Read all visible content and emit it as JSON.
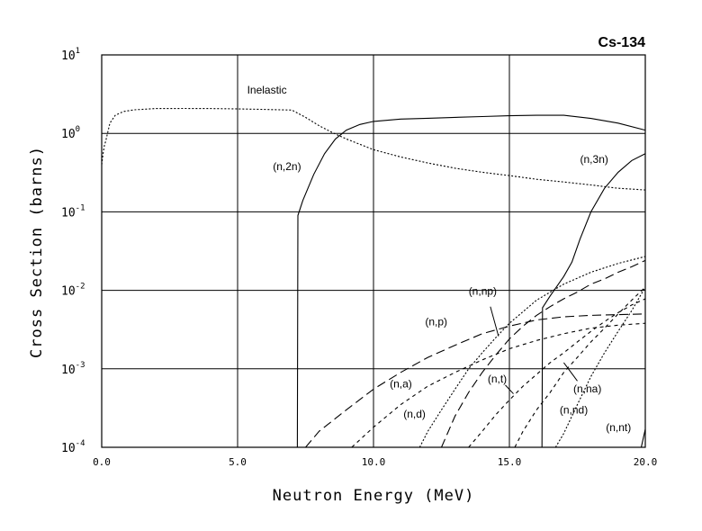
{
  "chart_data": {
    "type": "line",
    "title": "Cs-134",
    "xlabel": "Neutron Energy (MeV)",
    "ylabel": "Cross Section (barns)",
    "xlim": [
      0,
      20
    ],
    "ylim_log10": [
      -4,
      1
    ],
    "y_scale": "log",
    "grid": true,
    "x_ticks": [
      {
        "value": 0,
        "label": "0.0"
      },
      {
        "value": 5,
        "label": "5.0"
      },
      {
        "value": 10,
        "label": "10.0"
      },
      {
        "value": 15,
        "label": "15.0"
      },
      {
        "value": 20,
        "label": "20.0"
      }
    ],
    "y_ticks": [
      {
        "value": 10,
        "base": "10",
        "exp": "1"
      },
      {
        "value": 1,
        "base": "10",
        "exp": "0"
      },
      {
        "value": 0.1,
        "base": "10",
        "exp": "-1"
      },
      {
        "value": 0.01,
        "base": "10",
        "exp": "-2"
      },
      {
        "value": 0.001,
        "base": "10",
        "exp": "-3"
      },
      {
        "value": 0.0001,
        "base": "10",
        "exp": "-4"
      }
    ],
    "series": [
      {
        "name": "Inelastic",
        "dash": "2,2",
        "label": "Inelastic",
        "x": [
          0.0,
          0.05,
          0.1,
          0.15,
          0.2,
          0.3,
          0.5,
          0.8,
          1.2,
          2.0,
          3.0,
          4.0,
          5.0,
          6.0,
          7.0,
          7.5,
          8.0,
          8.5,
          9.0,
          10.0,
          11.0,
          12.0,
          13.0,
          14.0,
          15.0,
          16.0,
          17.0,
          18.0,
          19.0,
          20.0
        ],
        "y": [
          0.4,
          0.55,
          0.7,
          0.8,
          0.95,
          1.35,
          1.7,
          1.9,
          2.0,
          2.07,
          2.08,
          2.07,
          2.05,
          2.02,
          1.98,
          1.6,
          1.25,
          1.02,
          0.85,
          0.62,
          0.5,
          0.42,
          0.36,
          0.32,
          0.29,
          0.26,
          0.24,
          0.22,
          0.2,
          0.19
        ]
      },
      {
        "name": "(n,2n)",
        "dash": "",
        "label": "(n,2n)",
        "x": [
          7.2,
          7.22,
          7.4,
          7.8,
          8.2,
          8.6,
          9.0,
          9.5,
          10.0,
          11.0,
          12.0,
          13.0,
          14.0,
          15.0,
          16.0,
          17.0,
          18.0,
          19.0,
          20.0
        ],
        "y": [
          0.0001,
          0.09,
          0.14,
          0.3,
          0.55,
          0.85,
          1.1,
          1.3,
          1.42,
          1.52,
          1.56,
          1.6,
          1.64,
          1.68,
          1.7,
          1.7,
          1.55,
          1.35,
          1.1
        ]
      },
      {
        "name": "(n,3n)",
        "dash": "",
        "label": "(n,3n)",
        "x": [
          16.2,
          16.22,
          16.5,
          17.0,
          17.3,
          17.6,
          18.0,
          18.5,
          19.0,
          19.5,
          20.0
        ],
        "y": [
          0.0001,
          0.006,
          0.0085,
          0.015,
          0.023,
          0.045,
          0.1,
          0.2,
          0.32,
          0.45,
          0.55
        ]
      },
      {
        "name": "(n,p)",
        "dash": "10,5",
        "label": "(n,p)",
        "x": [
          7.5,
          8.0,
          9.0,
          10.0,
          11.0,
          12.0,
          13.0,
          14.0,
          15.0,
          16.0,
          17.0,
          18.0,
          19.0,
          20.0
        ],
        "y": [
          0.0001,
          0.00016,
          0.0003,
          0.00055,
          0.0009,
          0.0014,
          0.002,
          0.0028,
          0.0035,
          0.0042,
          0.0046,
          0.0048,
          0.0049,
          0.005
        ]
      },
      {
        "name": "(n,np)",
        "dash": "10,5",
        "label": "(n,np)",
        "x": [
          12.5,
          13.0,
          13.5,
          14.0,
          14.5,
          15.0,
          15.5,
          16.0,
          16.5,
          17.0,
          17.5,
          18.0,
          18.5,
          19.0,
          19.5,
          20.0
        ],
        "y": [
          0.0001,
          0.00025,
          0.0005,
          0.0009,
          0.0015,
          0.0024,
          0.0035,
          0.0048,
          0.0062,
          0.0078,
          0.0095,
          0.012,
          0.014,
          0.017,
          0.02,
          0.024
        ]
      },
      {
        "name": "(n,a)",
        "dash": "4,4",
        "label": "(n,a)",
        "x": [
          9.2,
          10.0,
          11.0,
          12.0,
          13.0,
          14.0,
          15.0,
          16.0,
          17.0,
          18.0,
          19.0,
          20.0
        ],
        "y": [
          0.0001,
          0.00018,
          0.00035,
          0.0006,
          0.0009,
          0.0013,
          0.0018,
          0.0023,
          0.0028,
          0.0033,
          0.0036,
          0.0038
        ]
      },
      {
        "name": "(n,d)",
        "dash": "2,2",
        "label": "(n,d)",
        "x": [
          11.7,
          12.0,
          12.5,
          13.0,
          13.5,
          14.0,
          14.5,
          15.0,
          16.0,
          17.0,
          18.0,
          19.0,
          20.0
        ],
        "y": [
          0.0001,
          0.00016,
          0.0003,
          0.00055,
          0.001,
          0.0016,
          0.0025,
          0.0038,
          0.0075,
          0.012,
          0.017,
          0.022,
          0.027
        ]
      },
      {
        "name": "(n,t)",
        "dash": "4,4",
        "label": "(n,t)",
        "x": [
          13.5,
          14.0,
          14.5,
          15.0,
          15.5,
          16.0,
          16.5,
          17.0,
          17.5,
          18.0,
          18.5,
          19.0,
          19.5,
          20.0
        ],
        "y": [
          0.0001,
          0.00016,
          0.00026,
          0.0004,
          0.0006,
          0.00085,
          0.0012,
          0.0016,
          0.0022,
          0.003,
          0.004,
          0.0052,
          0.0065,
          0.0078
        ]
      },
      {
        "name": "(n,na)",
        "dash": "4,4",
        "label": "(n,na)",
        "x": [
          15.2,
          15.5,
          16.0,
          16.5,
          17.0,
          17.5,
          18.0,
          18.5,
          19.0,
          19.5,
          20.0
        ],
        "y": [
          0.0001,
          0.00016,
          0.0003,
          0.0005,
          0.0009,
          0.0014,
          0.0022,
          0.0033,
          0.005,
          0.0075,
          0.011
        ]
      },
      {
        "name": "(n,nd)",
        "dash": "2,2",
        "label": "(n,nd)",
        "x": [
          16.7,
          17.0,
          17.5,
          18.0,
          18.5,
          19.0,
          19.5,
          20.0
        ],
        "y": [
          0.0001,
          0.00015,
          0.00035,
          0.0008,
          0.0016,
          0.003,
          0.0055,
          0.011
        ]
      },
      {
        "name": "(n,nt)",
        "dash": "",
        "label": "(n,nt)",
        "x": [
          19.85,
          20.0
        ],
        "y": [
          0.0001,
          0.00017
        ]
      }
    ],
    "annotations": [
      {
        "text": "Inelastic",
        "x": 5.35,
        "y": 3.2
      },
      {
        "text": "(n,2n)",
        "x": 6.3,
        "y": 0.34
      },
      {
        "text": "(n,3n)",
        "x": 17.6,
        "y": 0.42
      },
      {
        "text": "(n,np)",
        "x": 13.5,
        "y": 0.0088
      },
      {
        "text": "(n,p)",
        "x": 11.9,
        "y": 0.0036
      },
      {
        "text": "(n,a)",
        "x": 10.6,
        "y": 0.00058
      },
      {
        "text": "(n,t)",
        "x": 14.2,
        "y": 0.00067
      },
      {
        "text": "(n,na)",
        "x": 17.35,
        "y": 0.0005
      },
      {
        "text": "(n,d)",
        "x": 11.1,
        "y": 0.00024
      },
      {
        "text": "(n,nd)",
        "x": 16.85,
        "y": 0.00027
      },
      {
        "text": "(n,nt)",
        "x": 18.55,
        "y": 0.00016
      }
    ]
  }
}
